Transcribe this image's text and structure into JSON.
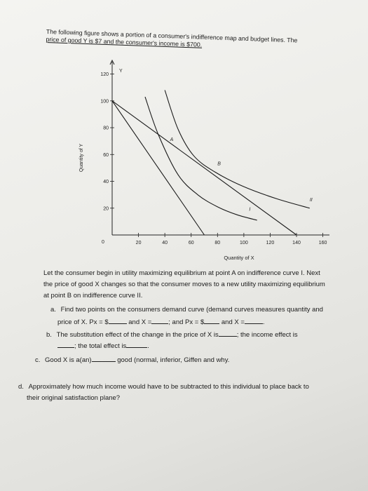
{
  "intro": {
    "line1": "The following figure shows a portion of a consumer's indifference map and budget lines. The",
    "line2": "price of good Y is $7 and the consumer's income is $700."
  },
  "chart_data": {
    "type": "line",
    "xlabel": "Quantity of X",
    "ylabel": "Quantity of Y",
    "y_axis_letter": "Y",
    "x_ticks": [
      "20",
      "40",
      "60",
      "80",
      "100",
      "120",
      "140",
      "160"
    ],
    "y_ticks": [
      "20",
      "40",
      "60",
      "80",
      "100",
      "120"
    ],
    "origin_label": "0",
    "xlim": [
      0,
      165
    ],
    "ylim": [
      0,
      125
    ],
    "series": [
      {
        "name": "",
        "kind": "budget",
        "points": [
          [
            0,
            100
          ],
          [
            70,
            0
          ]
        ]
      },
      {
        "name": "",
        "kind": "budget",
        "points": [
          [
            0,
            100
          ],
          [
            140,
            0
          ]
        ]
      },
      {
        "name": "I",
        "kind": "indifference",
        "points": [
          [
            25,
            103
          ],
          [
            35,
            75
          ],
          [
            50,
            45
          ],
          [
            65,
            30
          ],
          [
            80,
            21
          ],
          [
            95,
            15
          ],
          [
            110,
            11
          ]
        ]
      },
      {
        "name": "II",
        "kind": "indifference",
        "points": [
          [
            40,
            108
          ],
          [
            50,
            79
          ],
          [
            62,
            59
          ],
          [
            78,
            47
          ],
          [
            100,
            36
          ],
          [
            125,
            27
          ],
          [
            150,
            20
          ]
        ]
      }
    ],
    "annotations": [
      {
        "text": "A",
        "x": 44,
        "y": 70
      },
      {
        "text": "B",
        "x": 80,
        "y": 52
      },
      {
        "text": "I",
        "x": 104,
        "y": 18
      },
      {
        "text": "II",
        "x": 150,
        "y": 25
      }
    ]
  },
  "body": {
    "para1": "Let the consumer begin in utility maximizing equilibrium at point A on indifference curve I. Next",
    "para2": "the price of good X changes so that the consumer moves to a new utility maximizing equilibrium",
    "para3": "at point B on indifference curve II.",
    "qa_label": "a.",
    "qa_line1": "Find two points on the consumers demand curve (demand curves measures quantity and",
    "qa_line2_a": "price of X.  Px = $",
    "qa_line2_b": "and X =",
    "qa_line2_c": "; and Px = $",
    "qa_line2_d": "and X =",
    "qa_line2_e": ".",
    "qb_label": "b.",
    "qb_line1_a": "The substitution effect of the change in the price of X is",
    "qb_line1_b": "; the income effect is",
    "qb_line2_a": "; the total effect is",
    "qb_line2_b": ".",
    "qc_label": "c.",
    "qc_a": "Good X is a(an)",
    "qc_b": "good (normal, inferior, Giffen and why.",
    "qd_label": "d.",
    "qd_line1": "Approximately how much income would have to be subtracted to this individual to place back to",
    "qd_line2": "their original satisfaction plane?"
  }
}
